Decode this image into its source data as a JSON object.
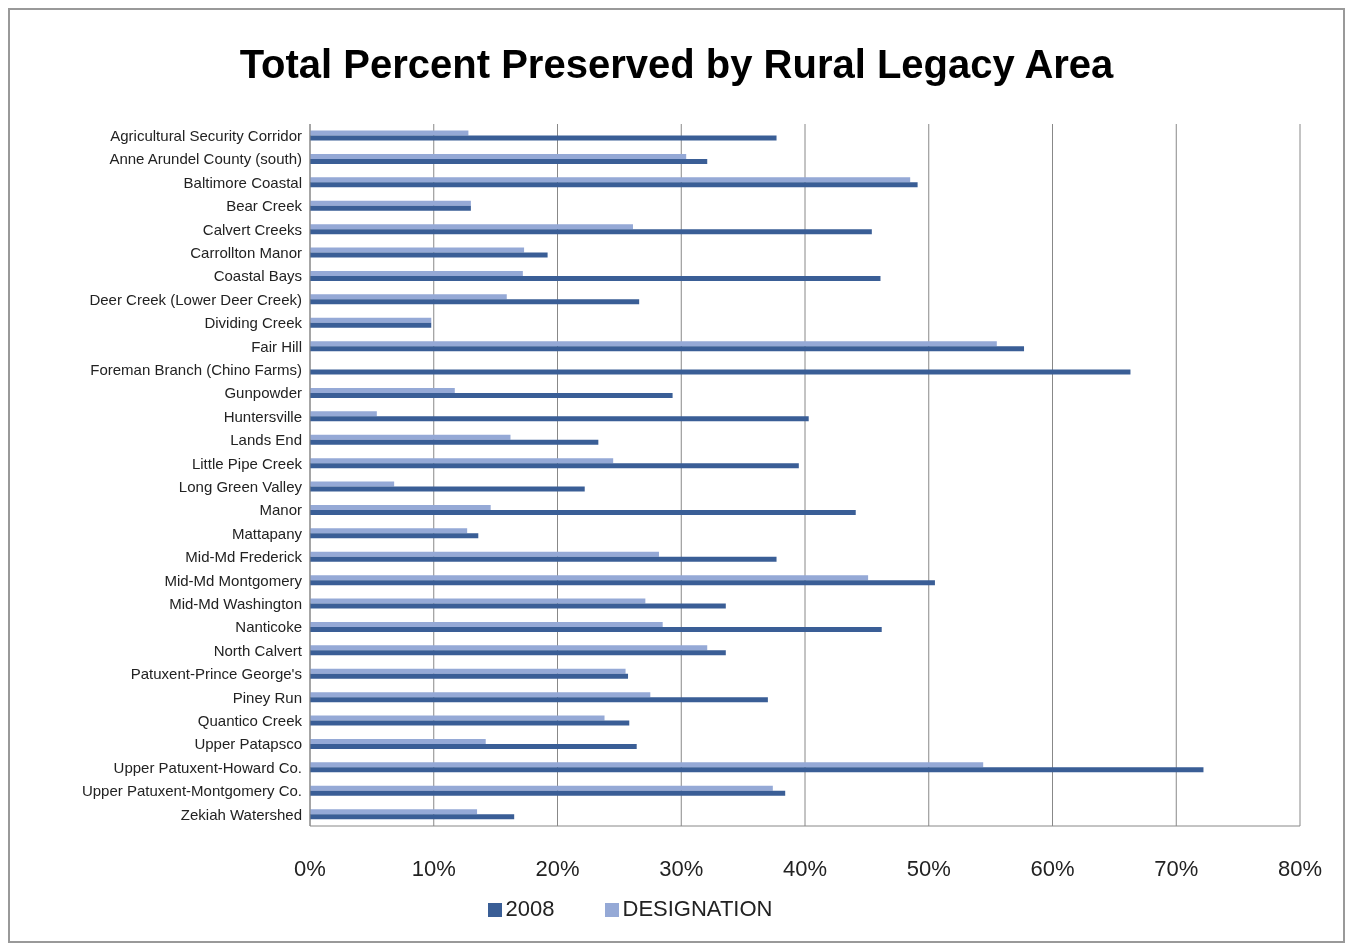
{
  "chart_data": {
    "type": "bar",
    "orientation": "horizontal",
    "title": "Total Percent Preserved by Rural Legacy Area",
    "categories": [
      "Agricultural Security Corridor",
      "Anne Arundel County (south)",
      "Baltimore Coastal",
      "Bear Creek",
      "Calvert Creeks",
      "Carrollton Manor",
      "Coastal Bays",
      "Deer Creek (Lower Deer Creek)",
      "Dividing Creek",
      "Fair Hill",
      "Foreman Branch (Chino Farms)",
      "Gunpowder",
      "Huntersville",
      "Lands End",
      "Little Pipe Creek",
      "Long Green Valley",
      "Manor",
      "Mattapany",
      "Mid-Md Frederick",
      "Mid-Md Montgomery",
      "Mid-Md Washington",
      "Nanticoke",
      "North Calvert",
      "Patuxent-Prince George's",
      "Piney Run",
      "Quantico Creek",
      "Upper Patapsco",
      "Upper Patuxent-Howard Co.",
      "Upper Patuxent-Montgomery Co.",
      "Zekiah Watershed"
    ],
    "series": [
      {
        "name": "DESIGNATION",
        "color": "#95a9d6",
        "values": [
          12.8,
          30.4,
          48.5,
          13.0,
          26.1,
          17.3,
          17.2,
          15.9,
          9.8,
          55.5,
          0,
          11.7,
          5.4,
          16.2,
          24.5,
          6.8,
          14.6,
          12.7,
          28.2,
          45.1,
          27.1,
          28.5,
          32.1,
          25.5,
          27.5,
          23.8,
          14.2,
          54.4,
          37.4,
          13.5
        ]
      },
      {
        "name": "2008",
        "color": "#3a5e96",
        "values": [
          37.7,
          32.1,
          49.1,
          13.0,
          45.4,
          19.2,
          46.1,
          26.6,
          9.8,
          57.7,
          66.3,
          29.3,
          40.3,
          23.3,
          39.5,
          22.2,
          44.1,
          13.6,
          37.7,
          50.5,
          33.6,
          46.2,
          33.6,
          25.7,
          37.0,
          25.8,
          26.4,
          72.2,
          38.4,
          16.5
        ]
      }
    ],
    "xlim": [
      0,
      80
    ],
    "xticks": [
      {
        "value": 0,
        "label": "0%"
      },
      {
        "value": 10,
        "label": "10%"
      },
      {
        "value": 20,
        "label": "20%"
      },
      {
        "value": 30,
        "label": "30%"
      },
      {
        "value": 40,
        "label": "40%"
      },
      {
        "value": 50,
        "label": "50%"
      },
      {
        "value": 60,
        "label": "60%"
      },
      {
        "value": 70,
        "label": "70%"
      },
      {
        "value": 80,
        "label": "80%"
      }
    ],
    "grid": "x",
    "legend": "bottom"
  }
}
